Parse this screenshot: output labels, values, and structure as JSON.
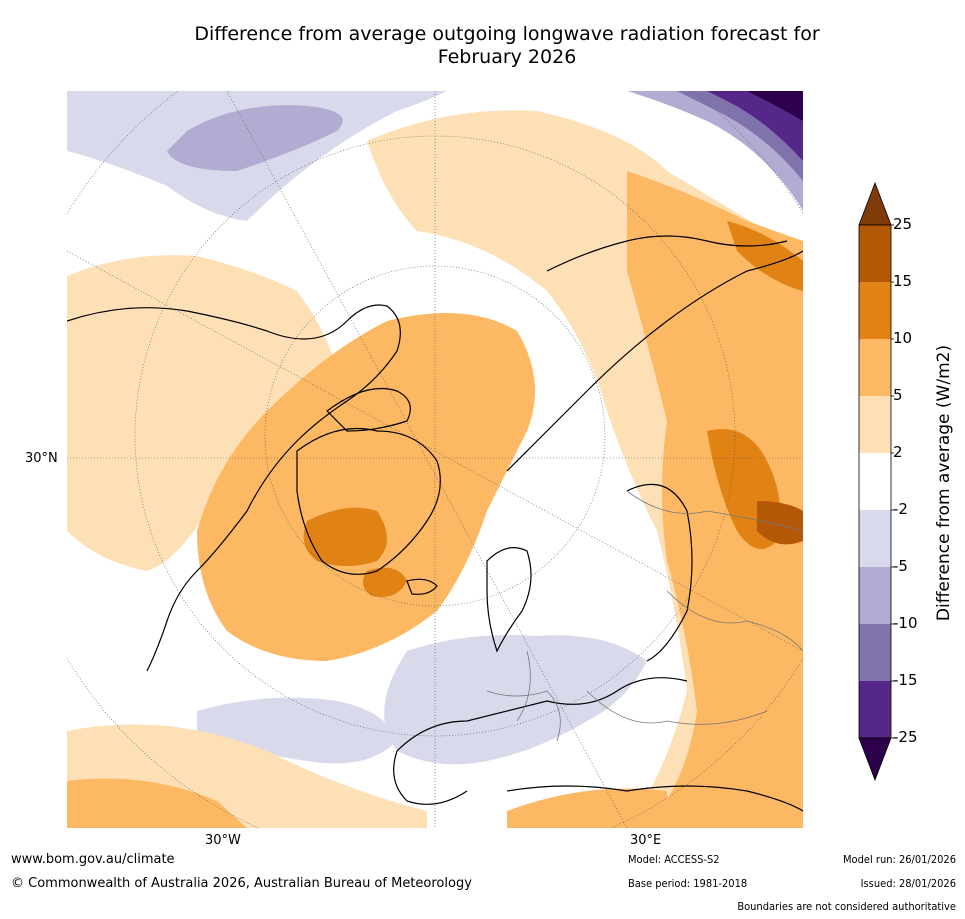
{
  "title": {
    "line1": "Difference from average outgoing longwave radiation forecast for",
    "line2": "February 2026"
  },
  "map": {
    "lat_label": "30°N",
    "lon_labels": [
      "30°W",
      "30°E"
    ]
  },
  "legend": {
    "label": "Difference from average (W/m2)",
    "ticks": [
      "25",
      "15",
      "10",
      "5",
      "2",
      "-2",
      "-5",
      "-10",
      "-15",
      "-25"
    ],
    "colors": [
      "#7f3b08",
      "#b35806",
      "#e08214",
      "#fdb863",
      "#fee0b6",
      "#ffffff",
      "#d8daeb",
      "#b2abd2",
      "#8073ac",
      "#542788",
      "#2d004b"
    ]
  },
  "footer": {
    "url": "www.bom.gov.au/climate",
    "copyright": "© Commonwealth of Australia 2026, Australian Bureau of Meteorology",
    "model": "Model: ACCESS-S2",
    "base_period": "Base period: 1981-2018",
    "model_run": "Model run: 26/01/2026",
    "issued": "Issued: 28/01/2026",
    "disclaimer": "Boundaries are not considered authoritative"
  }
}
